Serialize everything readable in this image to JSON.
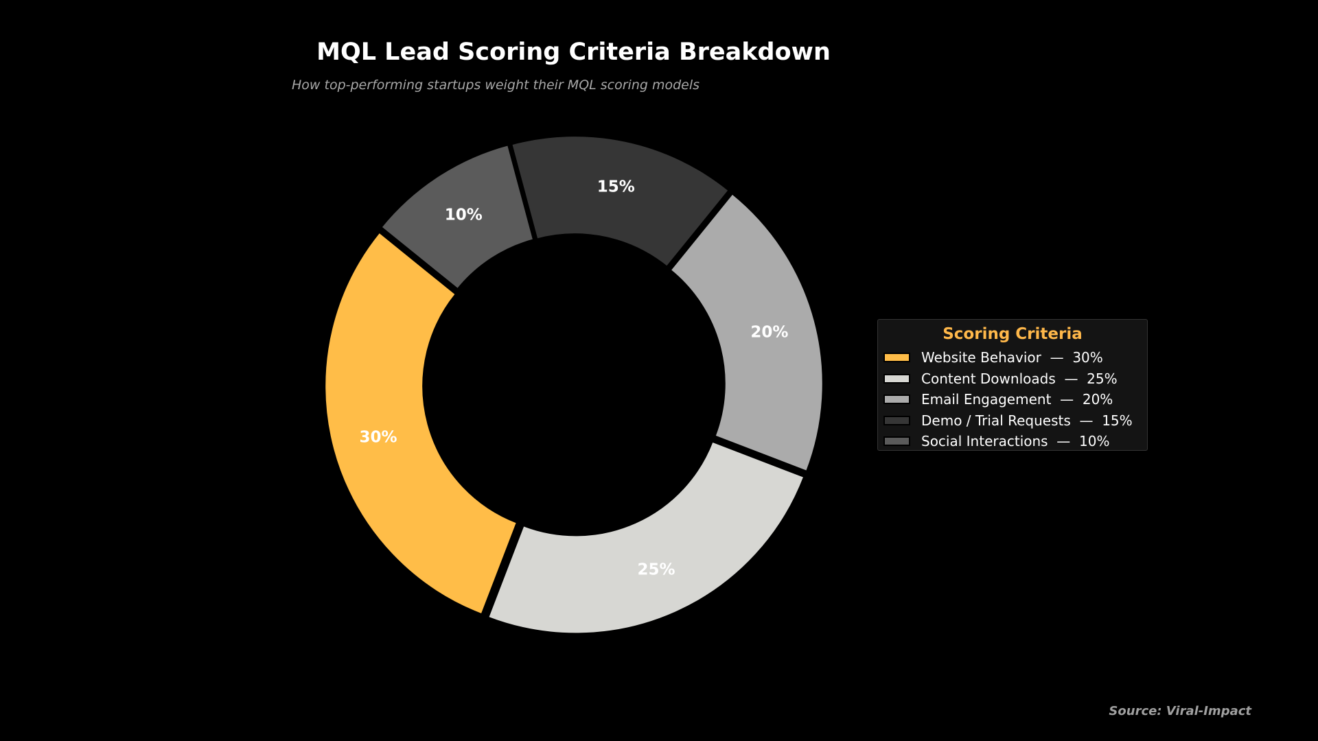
{
  "chart_data": {
    "type": "pie",
    "variant": "donut",
    "title": "MQL Lead Scoring Criteria Breakdown",
    "subtitle": "How top-performing startups weight their MQL scoring models",
    "categories": [
      "Website Behavior",
      "Content Downloads",
      "Email Engagement",
      "Demo / Trial Requests",
      "Social Interactions"
    ],
    "values": [
      30,
      25,
      20,
      15,
      10
    ],
    "value_labels": [
      "30%",
      "25%",
      "20%",
      "15%",
      "10%"
    ],
    "colors": [
      "#ffbd48",
      "#d7d7d3",
      "#ababab",
      "#363636",
      "#5b5b5b"
    ],
    "start_angle_deg": 141,
    "direction": "counterclockwise",
    "legend": {
      "title": "Scoring Criteria",
      "placement": "right",
      "entries": [
        "Website Behavior  —  30%",
        "Content Downloads  —  25%",
        "Email Engagement  —  20%",
        "Demo / Trial Requests  —  15%",
        "Social Interactions  —  10%"
      ]
    },
    "source": "Source: Viral-Impact"
  }
}
